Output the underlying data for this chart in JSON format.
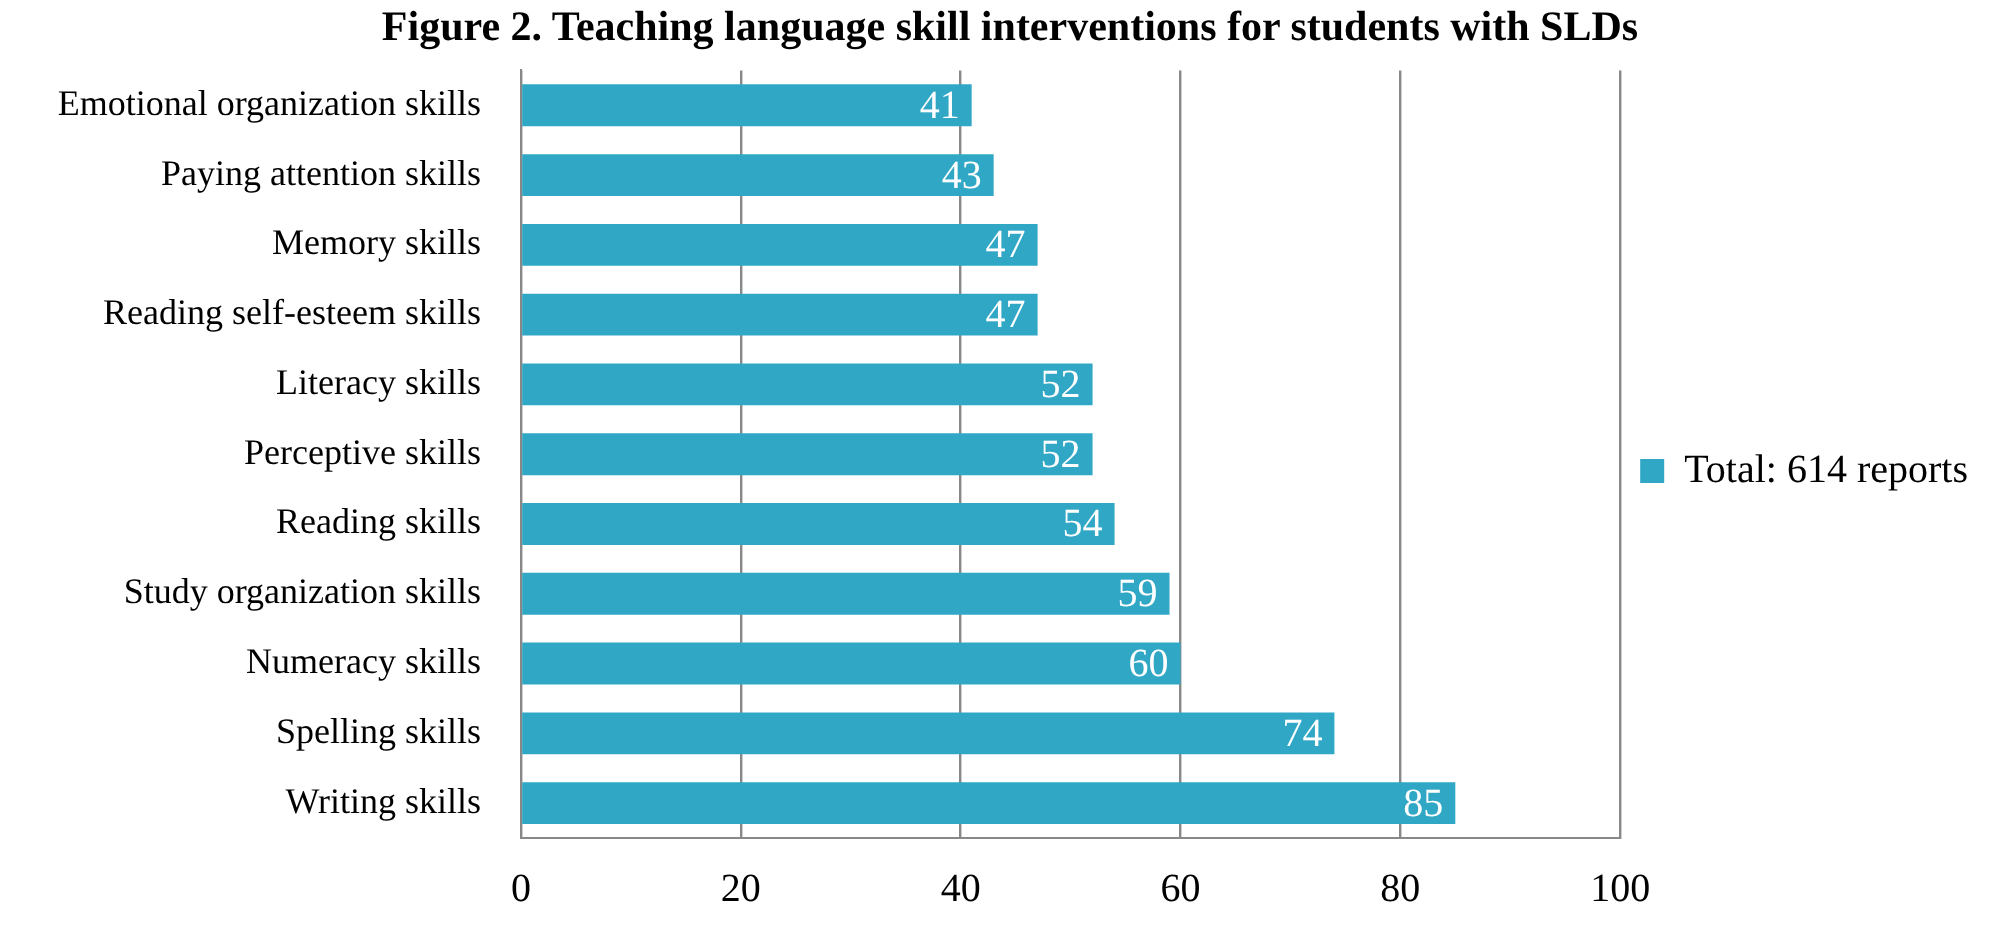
{
  "chart_data": {
    "type": "bar",
    "orientation": "horizontal",
    "title": "Figure 2. Teaching language skill interventions for students with SLDs",
    "categories": [
      "Emotional organization skills",
      "Paying attention skills",
      "Memory skills",
      "Reading self-esteem skills",
      "Literacy skills",
      "Perceptive skills",
      "Reading skills",
      "Study organization skills",
      "Numeracy skills",
      "Spelling skills",
      "Writing skills"
    ],
    "series": [
      {
        "name": "Total: 614 reports",
        "color": "#31a7c6",
        "values": [
          41,
          43,
          47,
          47,
          52,
          52,
          54,
          59,
          60,
          74,
          85
        ]
      }
    ],
    "xlim": [
      0,
      100
    ],
    "xticks": [
      0,
      20,
      40,
      60,
      80,
      100
    ],
    "grid": "x",
    "legend": "right",
    "data_labels": true
  }
}
